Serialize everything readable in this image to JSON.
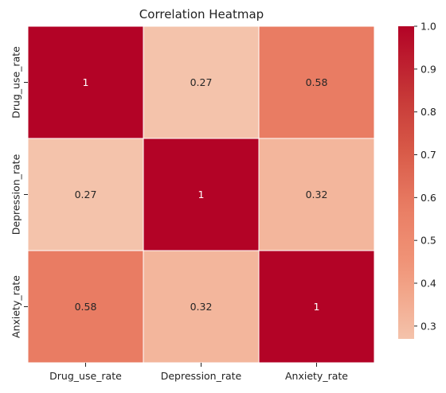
{
  "chart_data": {
    "type": "heatmap",
    "title": "Correlation Heatmap",
    "x_categories": [
      "Drug_use_rate",
      "Depression_rate",
      "Anxiety_rate"
    ],
    "y_categories": [
      "Drug_use_rate",
      "Depression_rate",
      "Anxiety_rate"
    ],
    "values": [
      [
        1.0,
        0.27,
        0.58
      ],
      [
        0.27,
        1.0,
        0.32
      ],
      [
        0.58,
        0.32,
        1.0
      ]
    ],
    "cell_labels": [
      [
        "1",
        "0.27",
        "0.58"
      ],
      [
        "0.27",
        "1",
        "0.32"
      ],
      [
        "0.58",
        "0.32",
        "1"
      ]
    ],
    "colormap": "coolwarm",
    "vmin": 0.27,
    "vmax": 1.0,
    "colorbar": {
      "position": "right",
      "ticks": [
        0.3,
        0.4,
        0.5,
        0.6,
        0.7,
        0.8,
        0.9,
        1.0
      ],
      "tick_labels": [
        "0.3",
        "0.4",
        "0.5",
        "0.6",
        "0.7",
        "0.8",
        "0.9",
        "1.0"
      ]
    },
    "cell_border_color": "#ffffff"
  }
}
